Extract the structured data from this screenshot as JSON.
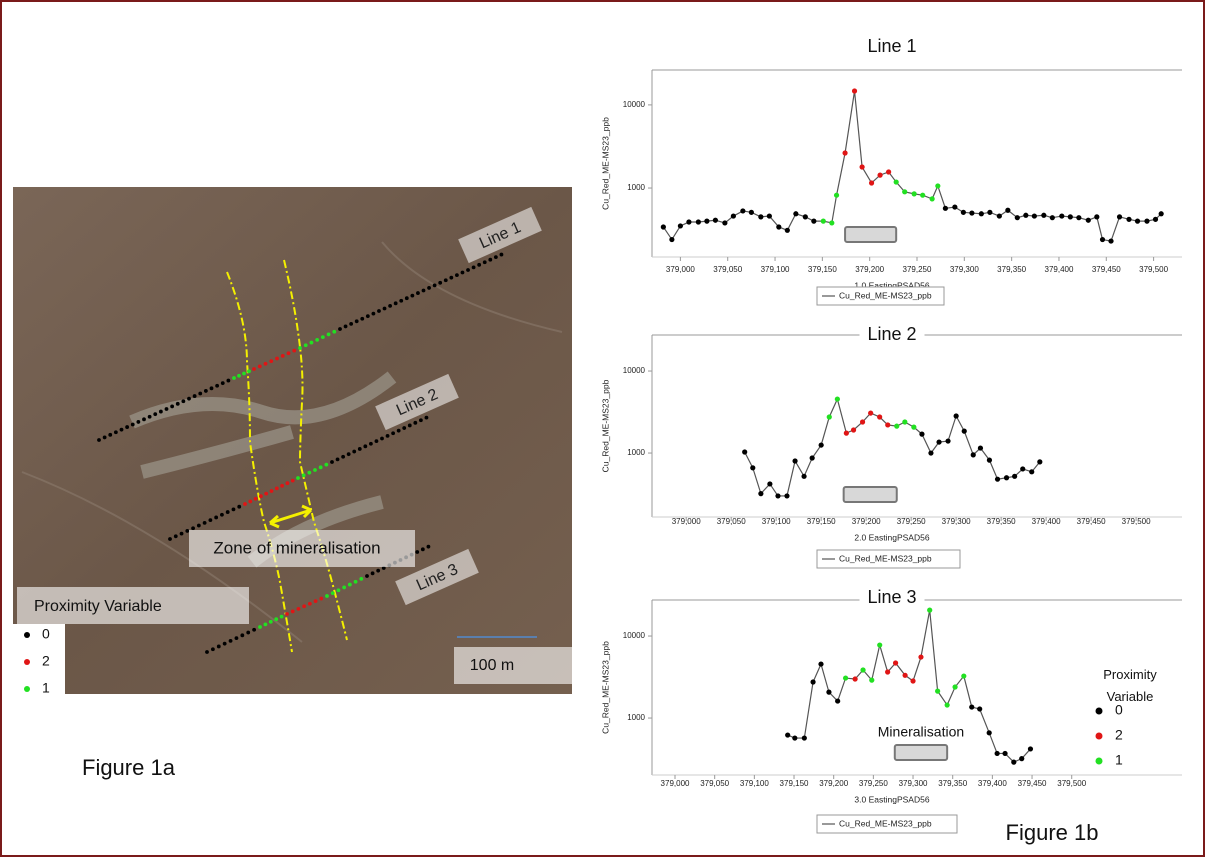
{
  "figure_1a": {
    "line_labels": [
      "Line 1",
      "Line 2",
      "Line 3"
    ],
    "zone_label": "Zone of mineralisation",
    "legend_title": "Proximity Variable",
    "legend_items": [
      "0",
      "2",
      "1"
    ],
    "scale_label": "100 m",
    "caption": "Figure 1a"
  },
  "figure_1b": {
    "caption": "Figure 1b",
    "legend_title": "Proximity Variable",
    "legend_items": [
      "0",
      "2",
      "1"
    ],
    "mineralisation_label": "Mineralisation"
  },
  "chart_data": [
    {
      "type": "line",
      "title": "Line 1",
      "x_label": "1.0 EastingPSAD56",
      "y_label": "Cu_Red_ME-MS23_ppb",
      "log_y": true,
      "xlim": [
        378970,
        379530
      ],
      "ylim": [
        148,
        26300
      ],
      "xticks": [
        {
          "value": 379000,
          "label": "379,000"
        },
        {
          "value": 379050,
          "label": "379,050"
        },
        {
          "value": 379100,
          "label": "379,100"
        },
        {
          "value": 379150,
          "label": "379,150"
        },
        {
          "value": 379200,
          "label": "379,200"
        },
        {
          "value": 379250,
          "label": "379,250"
        },
        {
          "value": 379300,
          "label": "379,300"
        },
        {
          "value": 379350,
          "label": "379,350"
        },
        {
          "value": 379400,
          "label": "379,400"
        },
        {
          "value": 379450,
          "label": "379,450"
        },
        {
          "value": 379500,
          "label": "379,500"
        }
      ],
      "yticks": [
        1000,
        10000
      ],
      "proximity_colors": {
        "0": "#000000",
        "1": "#22e022",
        "2": "#e01515"
      },
      "mineralisation_zone": [
        379174,
        379228
      ],
      "series": [
        {
          "name": "Cu_Red_ME-MS23_ppb",
          "color": "#555555",
          "x": [
            378982,
            378991,
            379000,
            379009,
            379019,
            379028,
            379037,
            379047,
            379056,
            379066,
            379075,
            379085,
            379094,
            379104,
            379113,
            379122,
            379132,
            379141,
            379151,
            379160,
            379165,
            379174,
            379184,
            379192,
            379202,
            379211,
            379220,
            379228,
            379237,
            379247,
            379256,
            379266,
            379272,
            379280,
            379290,
            379299,
            379308,
            379318,
            379327,
            379337,
            379346,
            379356,
            379365,
            379374,
            379384,
            379393,
            379403,
            379412,
            379421,
            379431,
            379440,
            379446,
            379455,
            379464,
            379474,
            379483,
            379493,
            379502,
            379508
          ],
          "values": [
            340,
            240,
            350,
            390,
            390,
            400,
            410,
            380,
            460,
            530,
            510,
            450,
            460,
            340,
            310,
            490,
            450,
            400,
            400,
            380,
            820,
            2640,
            14700,
            1790,
            1150,
            1430,
            1560,
            1180,
            900,
            850,
            820,
            740,
            1060,
            570,
            590,
            510,
            500,
            490,
            510,
            460,
            540,
            440,
            470,
            460,
            470,
            440,
            460,
            450,
            440,
            410,
            450,
            240,
            230,
            450,
            420,
            400,
            400,
            420,
            490
          ],
          "proximity": [
            0,
            0,
            0,
            0,
            0,
            0,
            0,
            0,
            0,
            0,
            0,
            0,
            0,
            0,
            0,
            0,
            0,
            0,
            1,
            1,
            1,
            2,
            2,
            2,
            2,
            2,
            2,
            1,
            1,
            1,
            1,
            1,
            1,
            0,
            0,
            0,
            0,
            0,
            0,
            0,
            0,
            0,
            0,
            0,
            0,
            0,
            0,
            0,
            0,
            0,
            0,
            0,
            0,
            0,
            0,
            0,
            0,
            0,
            0
          ]
        }
      ]
    },
    {
      "type": "line",
      "title": "Line 2",
      "x_label": "2.0 EastingPSAD56",
      "y_label": "Cu_Red_ME-MS23_ppb",
      "log_y": true,
      "xlim": [
        378962,
        379551
      ],
      "ylim": [
        166,
        27500
      ],
      "xticks": [
        {
          "value": 379000,
          "label": "379,000"
        },
        {
          "value": 379050,
          "label": "379,050"
        },
        {
          "value": 379100,
          "label": "379,100"
        },
        {
          "value": 379150,
          "label": "379,150"
        },
        {
          "value": 379200,
          "label": "379,200"
        },
        {
          "value": 379250,
          "label": "379,250"
        },
        {
          "value": 379300,
          "label": "379,300"
        },
        {
          "value": 379350,
          "label": "379,350"
        },
        {
          "value": 379400,
          "label": "379,400"
        },
        {
          "value": 379450,
          "label": "379,450"
        },
        {
          "value": 379500,
          "label": "379,500"
        }
      ],
      "yticks": [
        1000,
        10000
      ],
      "proximity_colors": {
        "0": "#000000",
        "1": "#22e022",
        "2": "#e01515"
      },
      "mineralisation_zone": [
        379175,
        379234
      ],
      "series": [
        {
          "name": "Cu_Red_ME-MS23_ppb",
          "color": "#555555",
          "x": [
            379065,
            379074,
            379083,
            379093,
            379102,
            379112,
            379121,
            379131,
            379140,
            379150,
            379159,
            379168,
            379178,
            379186,
            379196,
            379205,
            379215,
            379224,
            379234,
            379243,
            379253,
            379262,
            379272,
            379281,
            379291,
            379300,
            379309,
            379319,
            379327,
            379337,
            379346,
            379356,
            379365,
            379374,
            379384,
            379393
          ],
          "values": [
            1030,
            660,
            320,
            420,
            300,
            300,
            800,
            520,
            870,
            1250,
            2750,
            4550,
            1750,
            1910,
            2390,
            3070,
            2750,
            2200,
            2130,
            2390,
            2070,
            1700,
            1000,
            1360,
            1400,
            2830,
            1850,
            950,
            1150,
            820,
            480,
            500,
            520,
            640,
            590,
            780
          ],
          "proximity": [
            0,
            0,
            0,
            0,
            0,
            0,
            0,
            0,
            0,
            0,
            1,
            1,
            2,
            2,
            2,
            2,
            2,
            2,
            1,
            1,
            1,
            0,
            0,
            0,
            0,
            0,
            0,
            0,
            0,
            0,
            0,
            0,
            0,
            0,
            0,
            0
          ]
        }
      ]
    },
    {
      "type": "line",
      "title": "Line 3",
      "x_label": "3.0 EastingPSAD56",
      "y_label": "Cu_Red_ME-MS23_ppb",
      "log_y": true,
      "xlim": [
        378971,
        379639
      ],
      "ylim": [
        202,
        27500
      ],
      "xticks": [
        {
          "value": 379000,
          "label": "379,000"
        },
        {
          "value": 379050,
          "label": "379,050"
        },
        {
          "value": 379100,
          "label": "379,100"
        },
        {
          "value": 379150,
          "label": "379,150"
        },
        {
          "value": 379200,
          "label": "379,200"
        },
        {
          "value": 379250,
          "label": "379,250"
        },
        {
          "value": 379300,
          "label": "379,300"
        },
        {
          "value": 379350,
          "label": "379,350"
        },
        {
          "value": 379400,
          "label": "379,400"
        },
        {
          "value": 379450,
          "label": "379,450"
        },
        {
          "value": 379500,
          "label": "379,500"
        }
      ],
      "yticks": [
        1000,
        10000
      ],
      "proximity_colors": {
        "0": "#000000",
        "1": "#22e022",
        "2": "#e01515"
      },
      "mineralisation_zone": [
        379277,
        379343
      ],
      "series": [
        {
          "name": "Cu_Red_ME-MS23_ppb",
          "color": "#555555",
          "x": [
            379142,
            379151,
            379163,
            379174,
            379184,
            379194,
            379205,
            379215,
            379227,
            379237,
            379248,
            379258,
            379268,
            379278,
            379290,
            379300,
            379310,
            379321,
            379331,
            379343,
            379353,
            379364,
            379374,
            379384,
            379396,
            379406,
            379416,
            379427,
            379437,
            379448
          ],
          "values": [
            620,
            570,
            570,
            2750,
            4550,
            2070,
            1610,
            3070,
            2990,
            3850,
            2900,
            7760,
            3640,
            4690,
            3320,
            2830,
            5540,
            20700,
            2130,
            1440,
            2390,
            3250,
            1360,
            1290,
            660,
            370,
            370,
            290,
            320,
            420
          ],
          "proximity": [
            0,
            0,
            0,
            0,
            0,
            0,
            0,
            1,
            2,
            1,
            1,
            1,
            2,
            2,
            2,
            2,
            2,
            1,
            1,
            1,
            1,
            1,
            0,
            0,
            0,
            0,
            0,
            0,
            0,
            0
          ]
        }
      ]
    }
  ]
}
